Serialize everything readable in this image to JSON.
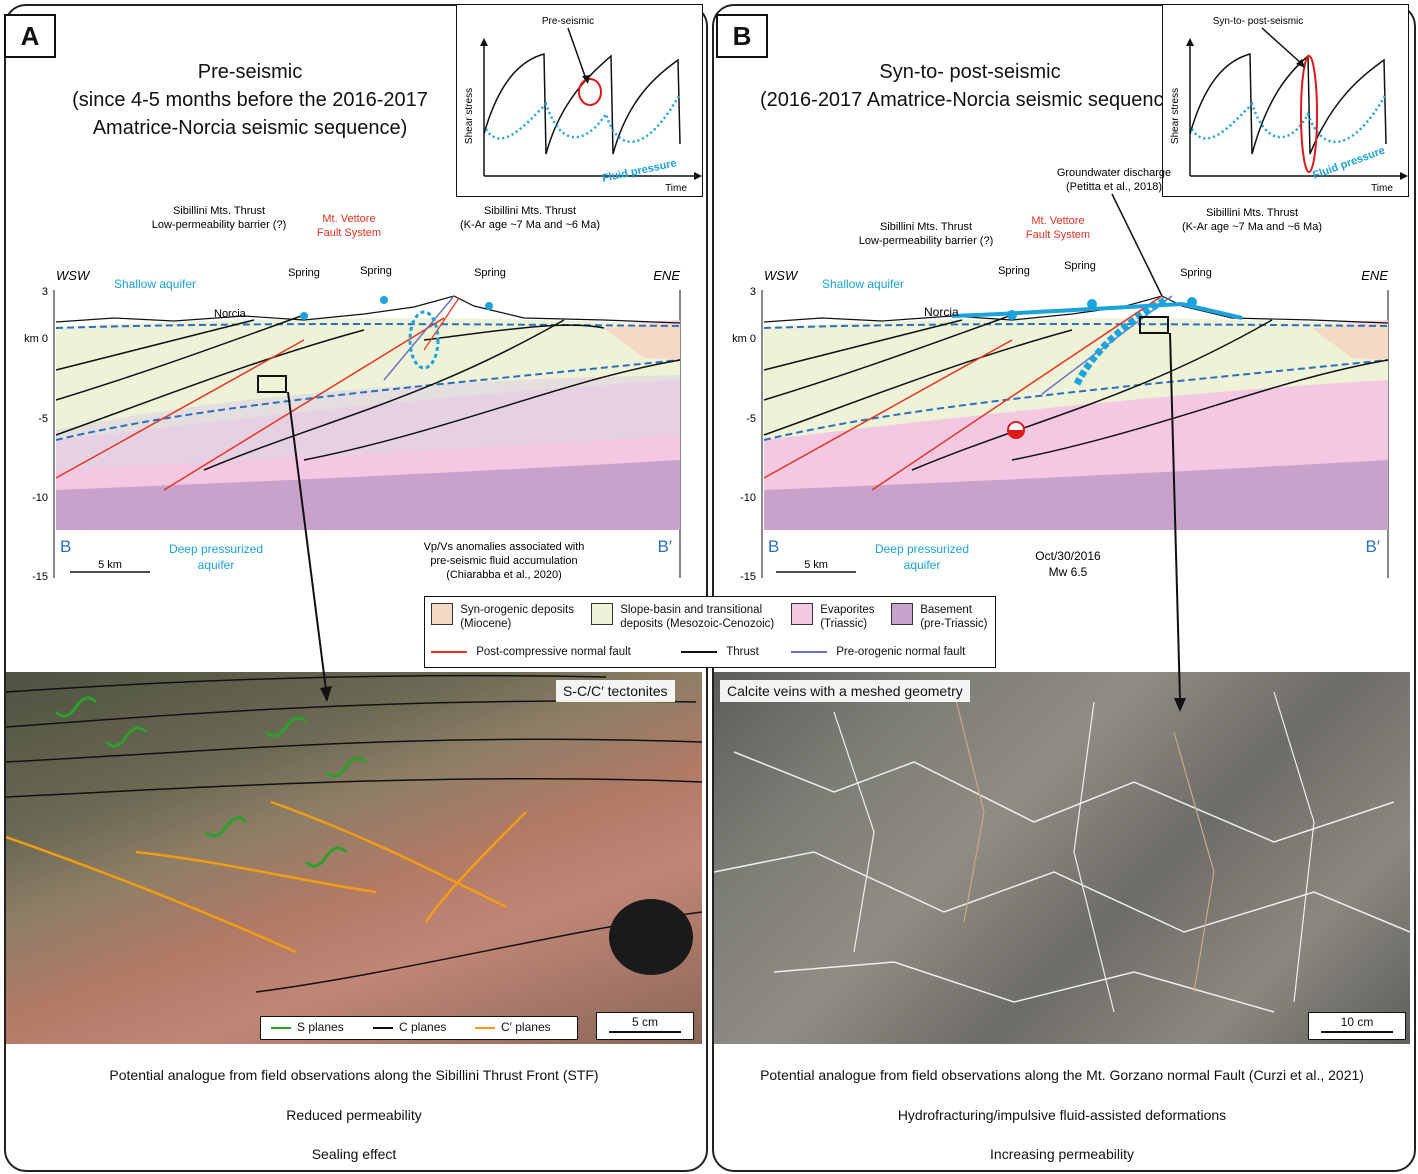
{
  "panels": {
    "a": {
      "letter": "A",
      "title_lines": [
        "Pre-seismic",
        "(since 4-5 months before the 2016-2017",
        "Amatrice-Norcia seismic sequence)"
      ],
      "inset": {
        "callout": "Pre-seismic",
        "ylabel": "Shear stress",
        "xlabel": "Time",
        "fluid_label": "Fluid pressure"
      },
      "section": {
        "wsw": "WSW",
        "ene": "ENE",
        "depth_ticks": [
          "3",
          "km 0",
          "-5",
          "-10",
          "-15"
        ],
        "b_left": "B",
        "b_right": "B′",
        "scale": "5 km",
        "shallow_aquifer": "Shallow aquifer",
        "norcia": "Norcia",
        "springs": [
          "Spring",
          "Spring",
          "Spring"
        ],
        "thrust_note_lines": [
          "Sibillini Mts. Thrust",
          "Low-permeability barrier (?)"
        ],
        "vettore_lines": [
          "Mt. Vettore",
          "Fault System"
        ],
        "thrust_age_lines": [
          "Sibillini Mts. Thrust",
          "(K-Ar age ~7 Ma and ~6 Ma)"
        ],
        "deep_aquifer_lines": [
          "Deep pressurized",
          "aquifer"
        ],
        "vpvs_lines": [
          "Vp/Vs anomalies associated with",
          "pre-seismic fluid accumulation",
          "(Chiarabba et al., 2020)"
        ]
      },
      "photo": {
        "tag": "S-C/C′ tectonites",
        "legend": [
          "S planes",
          "C planes",
          "C′ planes"
        ],
        "scale": "5 cm"
      },
      "caption": [
        "Potential analogue from field observations along the Sibillini Thrust Front (STF)",
        "Reduced permeability",
        "Sealing effect"
      ]
    },
    "b": {
      "letter": "B",
      "title_lines": [
        "Syn-to- post-seismic",
        "(2016-2017 Amatrice-Norcia seismic sequence)"
      ],
      "inset": {
        "callout": "Syn-to- post-seismic",
        "ylabel": "Shear stress",
        "xlabel": "Time",
        "fluid_label": "Fluid pressure"
      },
      "section": {
        "wsw": "WSW",
        "ene": "ENE",
        "depth_ticks": [
          "3",
          "km 0",
          "-5",
          "-10",
          "-15"
        ],
        "b_left": "B",
        "b_right": "B′",
        "scale": "5 km",
        "shallow_aquifer": "Shallow aquifer",
        "norcia": "Norcia",
        "springs": [
          "Spring",
          "Spring",
          "Spring"
        ],
        "thrust_note_lines": [
          "Sibillini Mts. Thrust",
          "Low-permeability barrier (?)"
        ],
        "vettore_lines": [
          "Mt. Vettore",
          "Fault System"
        ],
        "groundwater_lines": [
          "Groundwater discharge",
          "(Petitta et al., 2018)"
        ],
        "thrust_age_lines": [
          "Sibillini Mts. Thrust",
          "(K-Ar age ~7 Ma and ~6 Ma)"
        ],
        "deep_aquifer_lines": [
          "Deep pressurized",
          "aquifer"
        ],
        "event_lines": [
          "Oct/30/2016",
          "Mw 6.5"
        ]
      },
      "photo": {
        "tag": "Calcite veins with a meshed geometry",
        "scale": "10 cm"
      },
      "caption": [
        "Potential analogue from field observations along the Mt. Gorzano normal Fault (Curzi et al., 2021)",
        "Hydrofracturing/impulsive fluid-assisted deformations",
        "Increasing permeability"
      ]
    }
  },
  "legend": {
    "units": [
      {
        "lines": [
          "Syn-orogenic deposits",
          "(Miocene)"
        ],
        "color": "#f5d9c4"
      },
      {
        "lines": [
          "Slope-basin and transitional",
          "deposits (Mesozoic-Cenozoic)"
        ],
        "color": "#eef3d8"
      },
      {
        "lines": [
          "Evaporites",
          "(Triassic)"
        ],
        "color": "#f4c7e3"
      },
      {
        "lines": [
          "Basement",
          "(pre-Triassic)"
        ],
        "color": "#c9a2cc"
      }
    ],
    "lines": [
      {
        "label": "Post-compressive normal fault",
        "color": "#e8321f"
      },
      {
        "label": "Thrust",
        "color": "#111111"
      },
      {
        "label": "Pre-orogenic normal fault",
        "color": "#6f72c9"
      }
    ]
  },
  "colors": {
    "fluid": "#1aa3dd",
    "aquifer": "#2a6fc2",
    "fault": "#e8321f",
    "highlight": "#e01818"
  }
}
